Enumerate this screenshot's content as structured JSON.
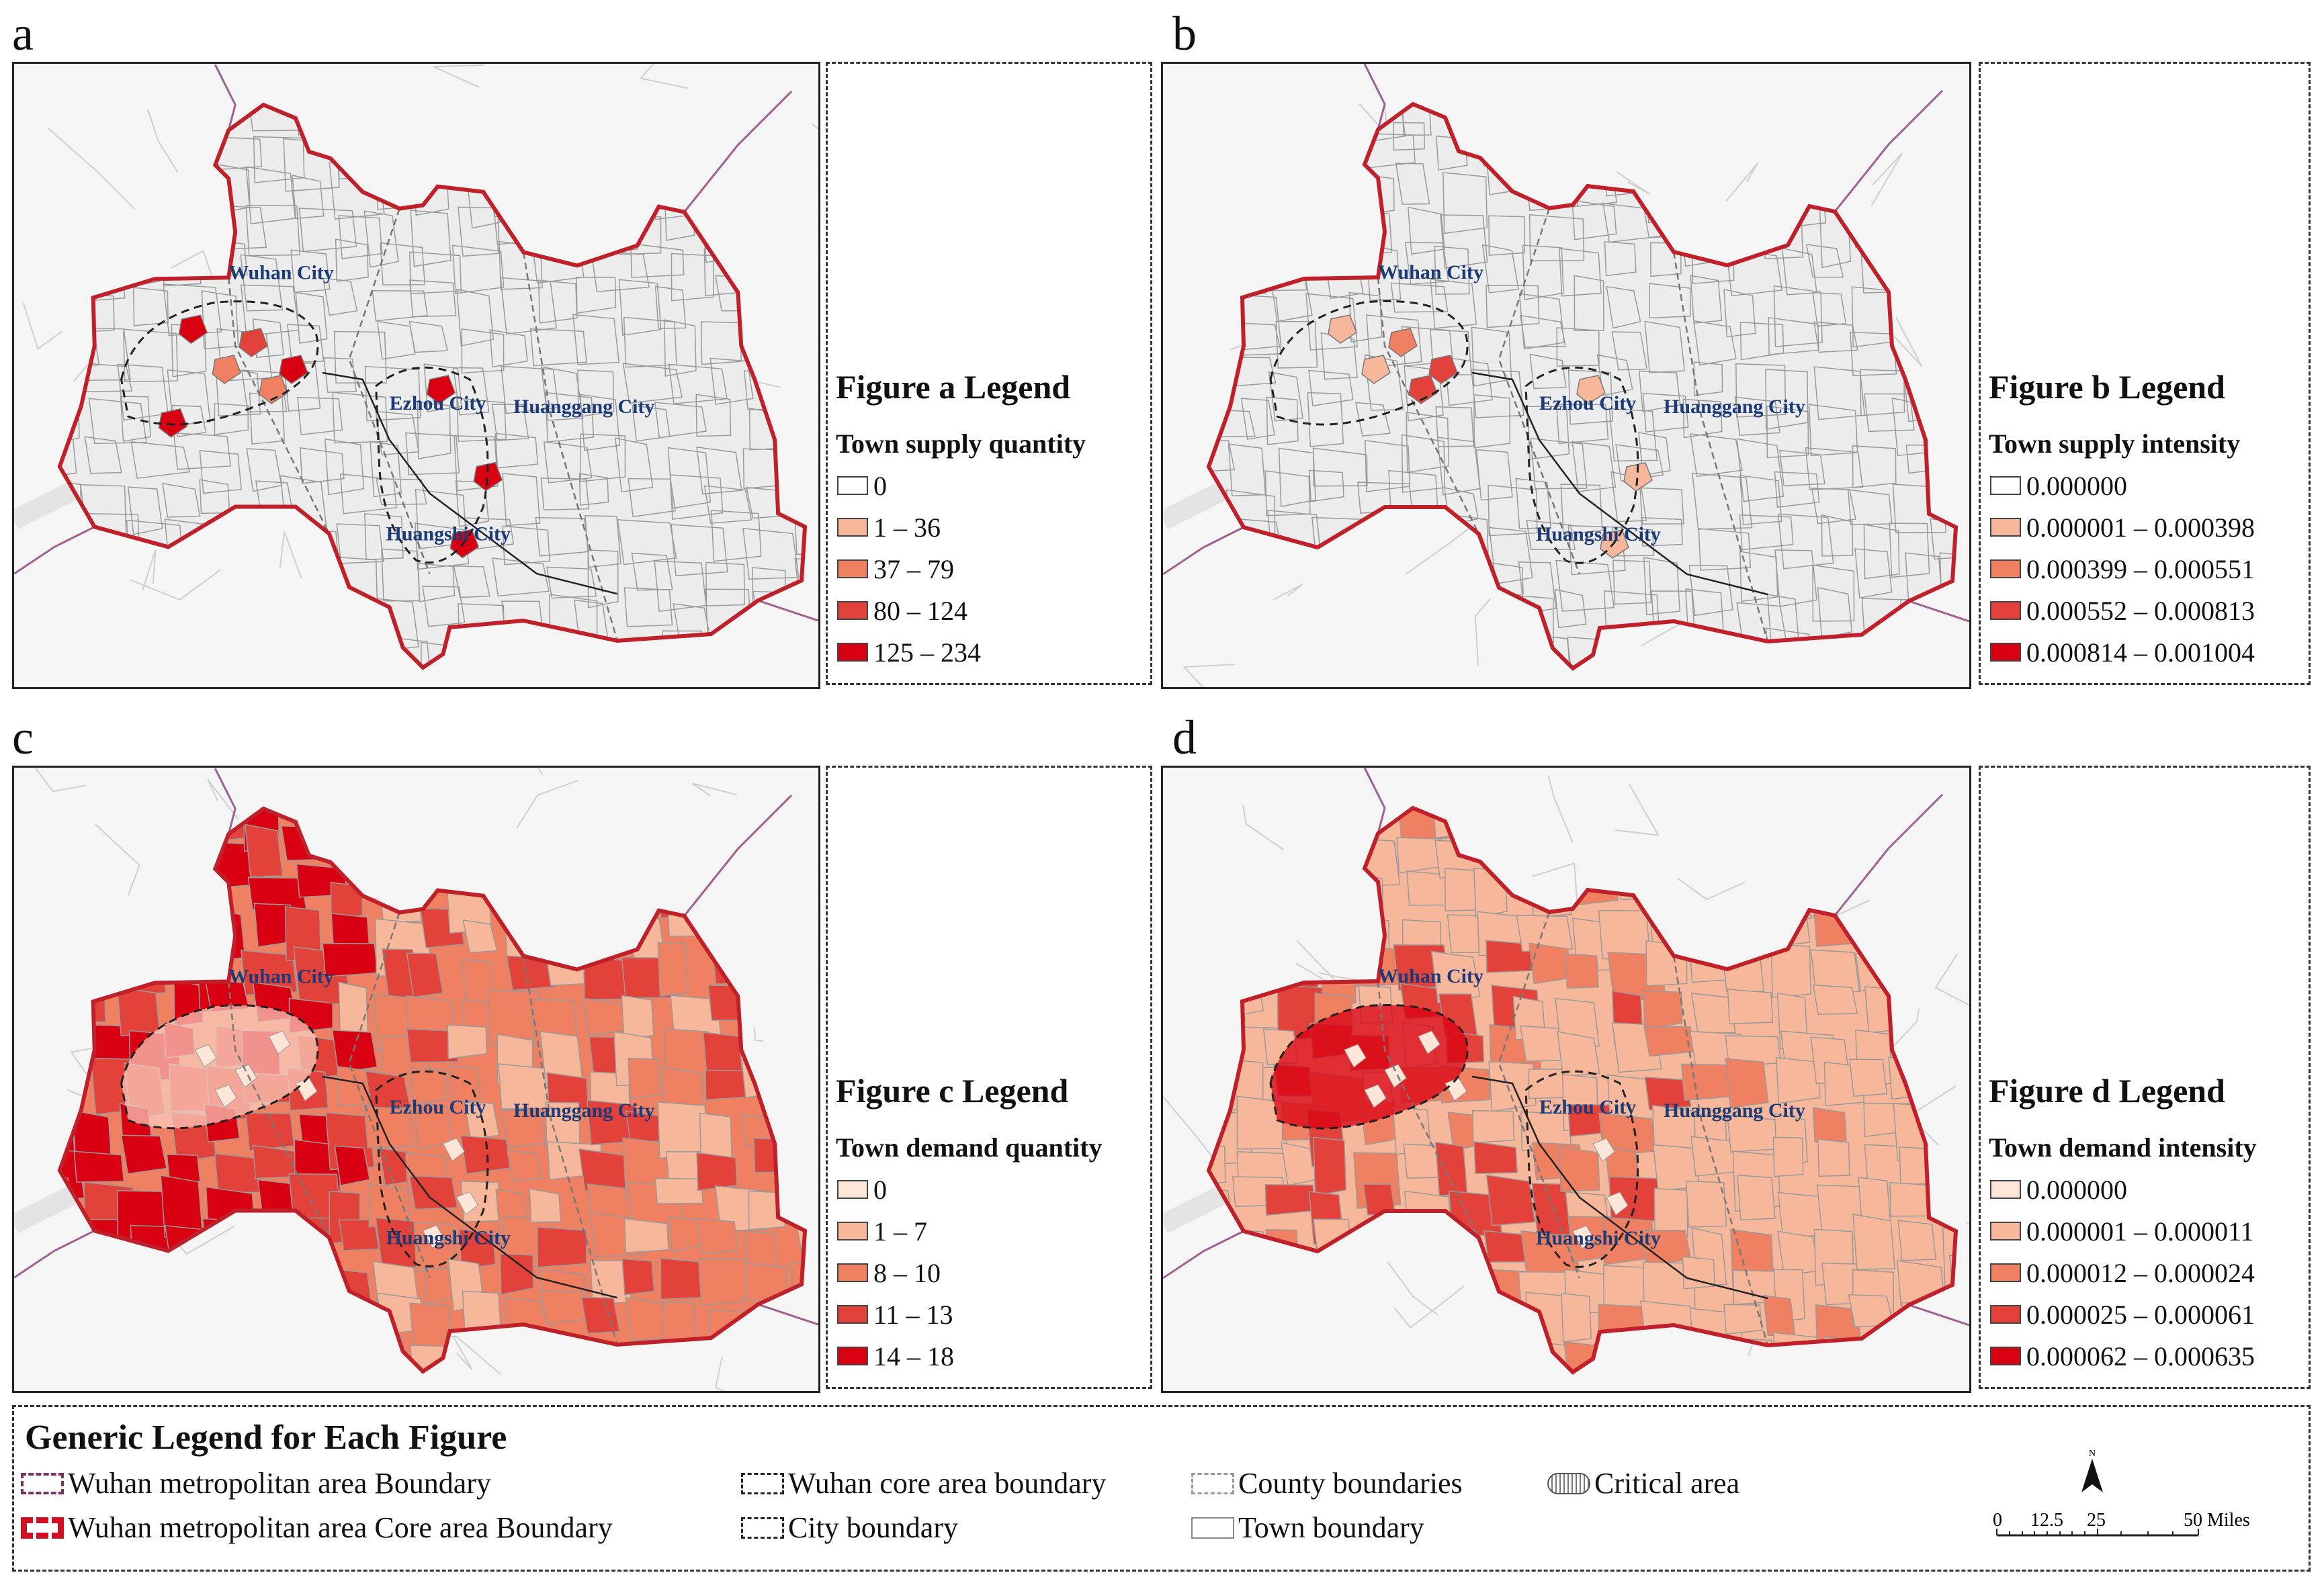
{
  "panels": [
    {
      "letter": "a",
      "legend_title": "Figure a Legend",
      "legend_subtitle": "Town supply quantity",
      "classes": [
        {
          "label": "0",
          "color": "#ffffff"
        },
        {
          "label": "1 – 36",
          "color": "#f7b79b"
        },
        {
          "label": "37 – 79",
          "color": "#ef8062"
        },
        {
          "label": "80 – 124",
          "color": "#e3423a"
        },
        {
          "label": "125 – 234",
          "color": "#d90012"
        }
      ]
    },
    {
      "letter": "b",
      "legend_title": "Figure b Legend",
      "legend_subtitle": "Town supply intensity",
      "classes": [
        {
          "label": "0.000000",
          "color": "#ffffff"
        },
        {
          "label": "0.000001 – 0.000398",
          "color": "#f7b79b"
        },
        {
          "label": "0.000399 – 0.000551",
          "color": "#ef8062"
        },
        {
          "label": "0.000552 – 0.000813",
          "color": "#e3423a"
        },
        {
          "label": "0.000814 – 0.001004",
          "color": "#d90012"
        }
      ]
    },
    {
      "letter": "c",
      "legend_title": "Figure c Legend",
      "legend_subtitle": "Town demand quantity",
      "classes": [
        {
          "label": "0",
          "color": "#fde6d8"
        },
        {
          "label": "1 – 7",
          "color": "#f7b79b"
        },
        {
          "label": "8 – 10",
          "color": "#ef8062"
        },
        {
          "label": "11 – 13",
          "color": "#e3423a"
        },
        {
          "label": "14 – 18",
          "color": "#d90012"
        }
      ]
    },
    {
      "letter": "d",
      "legend_title": "Figure d Legend",
      "legend_subtitle": "Town demand intensity",
      "classes": [
        {
          "label": "0.000000",
          "color": "#fde6d8"
        },
        {
          "label": "0.000001 – 0.000011",
          "color": "#f7b79b"
        },
        {
          "label": "0.000012 – 0.000024",
          "color": "#ef8062"
        },
        {
          "label": "0.000025 – 0.000061",
          "color": "#e3423a"
        },
        {
          "label": "0.000062 – 0.000635",
          "color": "#d90012"
        }
      ]
    }
  ],
  "map_labels": {
    "wuhan": "Wuhan City",
    "ezhou": "Ezhou City",
    "huanggang": "Huanggang City",
    "huangshi": "Huangshi City"
  },
  "generic_legend": {
    "title": "Generic Legend for Each Figure",
    "items": [
      {
        "key": "metro",
        "label": "Wuhan metropolitan area Boundary"
      },
      {
        "key": "metro_core",
        "label": "Wuhan metropolitan area Core area Boundary"
      },
      {
        "key": "core",
        "label": "Wuhan core area boundary"
      },
      {
        "key": "city",
        "label": "City boundary"
      },
      {
        "key": "county",
        "label": "County boundaries"
      },
      {
        "key": "town",
        "label": "Town boundary"
      },
      {
        "key": "critical",
        "label": "Critical area"
      }
    ]
  },
  "scale": {
    "north": "N",
    "ticks": [
      "0",
      "12.5",
      "25",
      "50 Miles"
    ]
  },
  "colors": {
    "boundary_red": "#c0202a",
    "metro_purple": "#7a3060",
    "city_label": "#1a3a78"
  }
}
